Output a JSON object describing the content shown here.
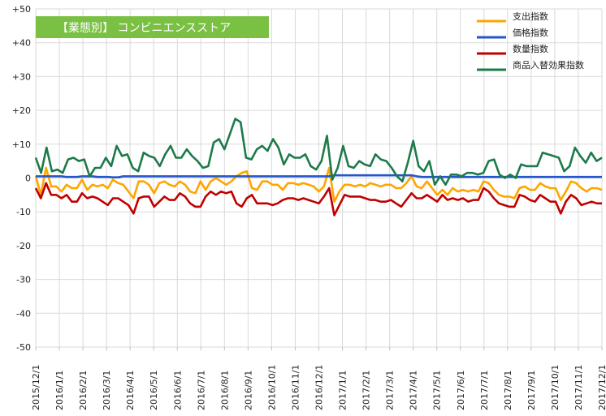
{
  "chart_data": {
    "type": "line",
    "title": "【業態別】 コンビニエンスストア",
    "xlabel": "",
    "ylabel": "",
    "ylim": [
      -50,
      50
    ],
    "yticks": [
      {
        "value": 50,
        "label": "+50"
      },
      {
        "value": 40,
        "label": "+40"
      },
      {
        "value": 30,
        "label": "+30"
      },
      {
        "value": 20,
        "label": "+20"
      },
      {
        "value": 10,
        "label": "+10"
      },
      {
        "value": 0,
        "label": "0"
      },
      {
        "value": -10,
        "label": "-10"
      },
      {
        "value": -20,
        "label": "-20"
      },
      {
        "value": -30,
        "label": "-30"
      },
      {
        "value": -40,
        "label": "-40"
      },
      {
        "value": -50,
        "label": "-50"
      }
    ],
    "x_labels": [
      "2015/12/1",
      "2016/1/1",
      "2016/2/1",
      "2016/3/1",
      "2016/4/1",
      "2016/5/1",
      "2016/6/1",
      "2016/7/1",
      "2016/8/1",
      "2016/9/1",
      "2016/10/1",
      "2016/11/1",
      "2016/12/1",
      "2017/1/1",
      "2017/2/1",
      "2017/3/1",
      "2017/4/1",
      "2017/5/1",
      "2017/6/1",
      "2017/7/1",
      "2017/8/1",
      "2017/9/1",
      "2017/10/1",
      "2017/11/1",
      "2017/12/1"
    ],
    "grid": true,
    "legend_position": "top-right",
    "series": [
      {
        "name": "支出指数",
        "color": "#ffa500",
        "values": [
          0.5,
          -5,
          3,
          -2.5,
          -2.5,
          -4,
          -2,
          -3,
          -3,
          -0.5,
          -3.5,
          -2,
          -2.5,
          -2,
          -3,
          -0.5,
          -1.5,
          -2,
          -4,
          -6,
          -1,
          -1,
          -2,
          -4.5,
          -1.5,
          -1,
          -2,
          -2.5,
          -1,
          -2,
          -4,
          -4.5,
          -1,
          -3.5,
          -1,
          0,
          -1,
          -2,
          -1,
          0.5,
          1.5,
          2,
          -3,
          -3.5,
          -1,
          -1,
          -2,
          -2,
          -3.5,
          -1.5,
          -1.5,
          -2,
          -1.5,
          -2,
          -2.5,
          -4,
          -2.5,
          3,
          -7,
          -4,
          -2,
          -2,
          -2.5,
          -2,
          -2.5,
          -1.5,
          -2,
          -2.5,
          -2,
          -2,
          -3,
          -3,
          -1.5,
          0.5,
          -2.5,
          -3,
          -1,
          -3,
          -5,
          -3.5,
          -5,
          -3,
          -4,
          -3.5,
          -4,
          -3.5,
          -4,
          -1,
          -1.5,
          -3.5,
          -5,
          -5.5,
          -5.5,
          -6,
          -3,
          -2.5,
          -3.5,
          -3.5,
          -1.5,
          -2.5,
          -3,
          -3,
          -6.5,
          -4,
          -1,
          -1.5,
          -3,
          -4,
          -3,
          -3,
          -3.5
        ]
      },
      {
        "name": "価格指数",
        "color": "#2456c8",
        "values": [
          0.5,
          0.5,
          0.5,
          0.5,
          0.5,
          0.5,
          0.3,
          0.3,
          0.3,
          0.5,
          0.5,
          0.5,
          0.3,
          0.3,
          0.3,
          0.2,
          0.2,
          0.5,
          0.5,
          0.5,
          0.5,
          0.5,
          0.5,
          0.5,
          0.5,
          0.5,
          0.5,
          0.5,
          0.5,
          0.5,
          0.5,
          0.5,
          0.5,
          0.5,
          0.5,
          0.5,
          0.5,
          0.5,
          0.5,
          0.5,
          0.5,
          0.5,
          0.5,
          0.5,
          0.5,
          0.5,
          0.5,
          0.5,
          0.5,
          0.5,
          0.5,
          0.5,
          0.5,
          0.5,
          0.5,
          0.5,
          0.5,
          0.5,
          0.8,
          0.8,
          0.8,
          0.8,
          0.8,
          0.8,
          0.8,
          0.8,
          0.8,
          0.8,
          0.8,
          0.8,
          0.8,
          0.8,
          0.8,
          0.8,
          0.5,
          0.3,
          0.3,
          0.3,
          0.3,
          0.3,
          0.3,
          0.3,
          0.3,
          0.3,
          0.3,
          0.3,
          0.3,
          0.3,
          0.3,
          0.3,
          0.3,
          0.3,
          0.3,
          0.3,
          0.3,
          0.3,
          0.3,
          0.3,
          0.3,
          0.3,
          0.3,
          0.3,
          0.3,
          0.3,
          0.3,
          0.3,
          0.3,
          0.3,
          0.3,
          0.3,
          0.3
        ]
      },
      {
        "name": "数量指数",
        "color": "#c00000",
        "values": [
          -3,
          -6,
          -1.5,
          -5,
          -5,
          -6,
          -5,
          -7,
          -7,
          -4.5,
          -6,
          -5.5,
          -6,
          -7,
          -8,
          -6,
          -6,
          -7,
          -8,
          -10.5,
          -6,
          -5.5,
          -5.5,
          -8.5,
          -7,
          -5.5,
          -6.5,
          -6.5,
          -4.5,
          -5.5,
          -7.5,
          -8.5,
          -8.5,
          -5.5,
          -4,
          -5,
          -4,
          -4.5,
          -4,
          -7.5,
          -8.5,
          -6,
          -5,
          -7.5,
          -7.5,
          -7.5,
          -8,
          -7.5,
          -6.5,
          -6,
          -6,
          -6.5,
          -6,
          -6.5,
          -7,
          -7.5,
          -5.5,
          -3,
          -11,
          -8,
          -5,
          -5.5,
          -5.5,
          -5.5,
          -6,
          -6.5,
          -6.5,
          -7,
          -7,
          -6.5,
          -7.5,
          -8.5,
          -6.5,
          -4.5,
          -6,
          -6,
          -5,
          -6,
          -7,
          -5,
          -6.5,
          -6,
          -6.5,
          -6,
          -7,
          -6.5,
          -6.5,
          -3,
          -4,
          -6,
          -7.5,
          -8,
          -8.5,
          -8.5,
          -5,
          -5.5,
          -6.5,
          -7,
          -5,
          -6,
          -7,
          -7,
          -10.5,
          -7,
          -5,
          -6,
          -8,
          -7.5,
          -7,
          -7.5,
          -7.5
        ]
      },
      {
        "name": "商品入替効果指数",
        "color": "#1d7a4a",
        "values": [
          6,
          1.5,
          9,
          2,
          2.5,
          1.5,
          5.5,
          6,
          5,
          5.5,
          0.5,
          3,
          3,
          6,
          3.5,
          9.5,
          6.5,
          7,
          3,
          2,
          7.5,
          6.5,
          6,
          3.5,
          7,
          9.5,
          6,
          6,
          8.5,
          6.5,
          5,
          3,
          3.5,
          10.5,
          11.5,
          8.5,
          13,
          17.5,
          16.5,
          6,
          5.5,
          8.5,
          9.5,
          8,
          11.5,
          9,
          4,
          7,
          6,
          6,
          7,
          3.5,
          2.5,
          5,
          12.5,
          -0.5,
          3,
          9.5,
          3.5,
          3,
          5,
          4,
          3.5,
          7,
          5.5,
          5,
          3,
          0.5,
          -1,
          4.5,
          11,
          3.5,
          2,
          5,
          -2,
          0.5,
          -2,
          1,
          1,
          0.5,
          1.5,
          1.5,
          1,
          1.5,
          5,
          5.5,
          1,
          0,
          1,
          0,
          4,
          3.5,
          3.5,
          3.5,
          7.5,
          7,
          6.5,
          6,
          2,
          3.5,
          9,
          6.5,
          4.5,
          7.5,
          5,
          6
        ]
      }
    ]
  }
}
